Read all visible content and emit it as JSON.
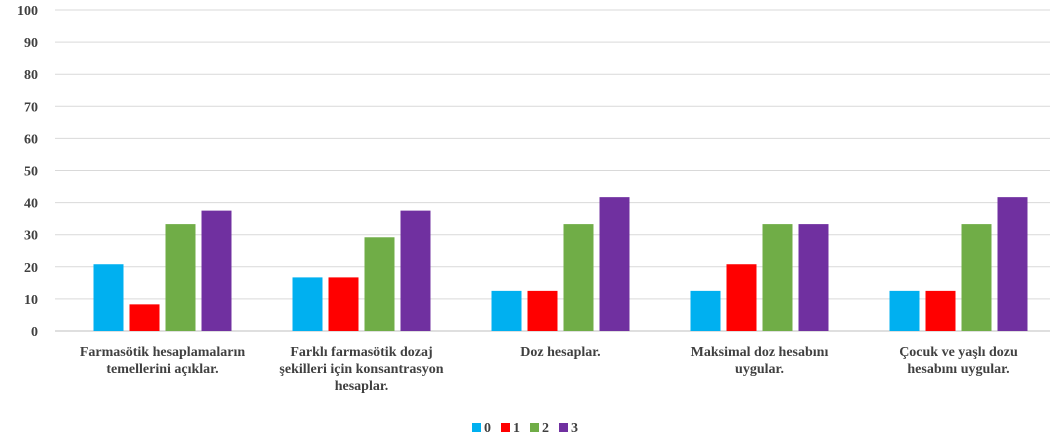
{
  "chart_data": {
    "type": "bar",
    "categories": [
      [
        "Farmasötik hesaplamaların",
        "temellerini açıklar."
      ],
      [
        "Farklı farmasötik dozaj",
        "şekilleri için konsantrasyon",
        "hesaplar."
      ],
      [
        "Doz hesaplar."
      ],
      [
        "Maksimal doz hesabını",
        "uygular."
      ],
      [
        "Çocuk ve yaşlı dozu",
        "hesabını uygular."
      ]
    ],
    "series": [
      {
        "name": "0",
        "color": "#00b0f0",
        "values": [
          20.8,
          16.7,
          12.5,
          12.5,
          12.5
        ]
      },
      {
        "name": "1",
        "color": "#ff0000",
        "values": [
          8.3,
          16.7,
          12.5,
          20.8,
          12.5
        ]
      },
      {
        "name": "2",
        "color": "#70ad47",
        "values": [
          33.3,
          29.2,
          33.3,
          33.3,
          33.3
        ]
      },
      {
        "name": "3",
        "color": "#7030a0",
        "values": [
          37.5,
          37.5,
          41.7,
          33.3,
          41.7
        ]
      }
    ],
    "title": "",
    "xlabel": "",
    "ylabel": "",
    "ylim": [
      0,
      100
    ],
    "yticks": [
      "0",
      "10",
      "20",
      "30",
      "40",
      "50",
      "60",
      "70",
      "80",
      "90",
      "100"
    ],
    "grid": true,
    "legend_position": "bottom"
  }
}
